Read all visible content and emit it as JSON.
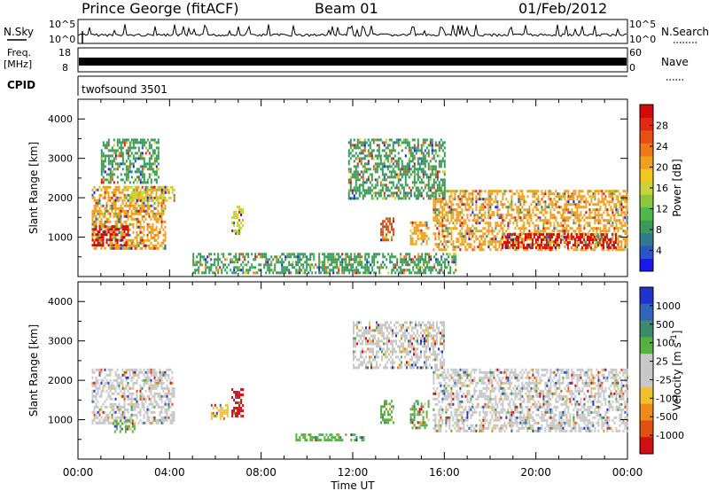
{
  "header": {
    "station": "Prince George (fitACF)",
    "beam": "Beam 01",
    "date": "01/Feb/2012"
  },
  "strip_panels": {
    "nsky": {
      "label": "N.Sky",
      "top_tick": "10^5",
      "bottom_tick": "10^0",
      "right_label": "N.Search",
      "right_top_tick": "10^5",
      "right_bottom_tick": "10^0"
    },
    "freq": {
      "label": "Freq.",
      "unit": "[MHz]",
      "top_tick": "18",
      "bottom_tick": "8",
      "right_label": "Nave",
      "right_top_tick": "60",
      "right_bottom_tick": "0"
    },
    "cpid": {
      "label": "CPID",
      "value": "twofsound 3501"
    }
  },
  "chart_data": [
    {
      "type": "heatmap",
      "name": "power",
      "ylabel": "Slant Range [km]",
      "ylim": [
        0,
        4500
      ],
      "yticks": [
        1000,
        2000,
        3000,
        4000
      ],
      "xlim_hours": [
        0,
        24
      ],
      "colorbar": {
        "label": "Power [dB]",
        "ticks": [
          "4",
          "8",
          "12",
          "16",
          "20",
          "24",
          "28"
        ],
        "colors": [
          "#1a1ae6",
          "#2a55c8",
          "#2f7a8c",
          "#3a9a5a",
          "#4fb848",
          "#8cc63c",
          "#c8d23a",
          "#f0c81e",
          "#f0a01e",
          "#f07818",
          "#e65014",
          "#e02a10",
          "#d20a0a"
        ]
      },
      "echo_regions": [
        {
          "t0": 0.6,
          "t1": 3.8,
          "r0": 700,
          "r1": 2300,
          "level": 20
        },
        {
          "t0": 0.6,
          "t1": 2.2,
          "r0": 800,
          "r1": 1300,
          "level": 28
        },
        {
          "t0": 2.0,
          "t1": 4.2,
          "r0": 1900,
          "r1": 2300,
          "level": 16
        },
        {
          "t0": 1.0,
          "t1": 3.5,
          "r0": 2400,
          "r1": 3500,
          "level": 8
        },
        {
          "t0": 6.7,
          "t1": 7.2,
          "r0": 1100,
          "r1": 1800,
          "level": 16
        },
        {
          "t0": 13.2,
          "t1": 13.8,
          "r0": 900,
          "r1": 1500,
          "level": 24
        },
        {
          "t0": 14.5,
          "t1": 15.3,
          "r0": 800,
          "r1": 1400,
          "level": 20
        },
        {
          "t0": 15.5,
          "t1": 24.0,
          "r0": 700,
          "r1": 2200,
          "level": 20
        },
        {
          "t0": 18.5,
          "t1": 23.5,
          "r0": 700,
          "r1": 1100,
          "level": 28
        },
        {
          "t0": 11.8,
          "t1": 16.0,
          "r0": 2000,
          "r1": 3500,
          "level": 8
        },
        {
          "t0": 5.0,
          "t1": 16.5,
          "r0": 100,
          "r1": 600,
          "level": 8
        }
      ]
    },
    {
      "type": "heatmap",
      "name": "velocity",
      "ylabel": "Slant Range [km]",
      "xlabel": "Time UT",
      "ylim": [
        0,
        4500
      ],
      "yticks": [
        1000,
        2000,
        3000,
        4000
      ],
      "xlim_hours": [
        0,
        24
      ],
      "xticks": [
        "00:00",
        "04:00",
        "08:00",
        "12:00",
        "16:00",
        "20:00",
        "00:00"
      ],
      "colorbar": {
        "label": "Velocity [m s",
        "label_superscript": "-1",
        "label_close": "]",
        "ticks": [
          "1000",
          "500",
          "100",
          "25",
          "-25",
          "-100",
          "-500",
          "-1000"
        ],
        "colors": [
          "#2233cc",
          "#3366bb",
          "#3d8a6e",
          "#58b040",
          "#c8c8c8",
          "#c8c8c8",
          "#f0c030",
          "#f08a18",
          "#e05010",
          "#d01010"
        ]
      },
      "echo_regions": [
        {
          "t0": 0.6,
          "t1": 4.2,
          "r0": 900,
          "r1": 2300,
          "level": 0
        },
        {
          "t0": 1.5,
          "t1": 2.5,
          "r0": 700,
          "r1": 1000,
          "level": 100
        },
        {
          "t0": 6.7,
          "t1": 7.2,
          "r0": 1100,
          "r1": 1800,
          "level": -1000
        },
        {
          "t0": 5.8,
          "t1": 6.5,
          "r0": 1000,
          "r1": 1400,
          "level": -500
        },
        {
          "t0": 13.2,
          "t1": 13.8,
          "r0": 900,
          "r1": 1500,
          "level": 100
        },
        {
          "t0": 14.5,
          "t1": 15.3,
          "r0": 800,
          "r1": 1500,
          "level": 100
        },
        {
          "t0": 15.5,
          "t1": 24.0,
          "r0": 700,
          "r1": 2300,
          "level": 0
        },
        {
          "t0": 9.5,
          "t1": 12.5,
          "r0": 450,
          "r1": 650,
          "level": 100
        },
        {
          "t0": 12.0,
          "t1": 16.0,
          "r0": 2300,
          "r1": 3500,
          "level": 0
        }
      ]
    }
  ]
}
